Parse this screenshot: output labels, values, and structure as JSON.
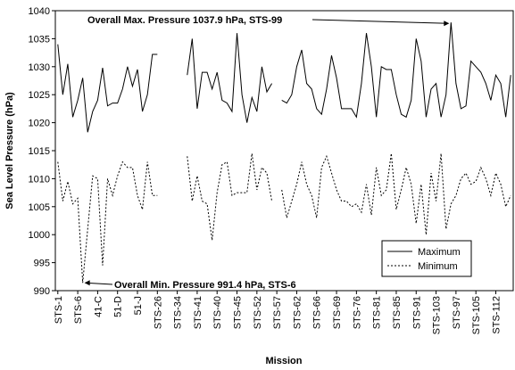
{
  "chart_data": {
    "type": "line",
    "x_label": "Mission",
    "y_label": "Sea Level Pressure (hPa)",
    "annotations": [
      "Overall Max. Pressure 1037.9 hPa, STS-99",
      "Overall Min. Pressure 991.4 hPa, STS-6"
    ],
    "categories": [
      "STS-1",
      null,
      null,
      null,
      "STS-6",
      null,
      null,
      null,
      "41-C",
      null,
      null,
      null,
      "51-D",
      null,
      null,
      null,
      "51-J",
      null,
      null,
      null,
      "STS-26",
      null,
      null,
      null,
      "STS-34",
      null,
      null,
      null,
      "STS-41",
      null,
      null,
      null,
      "STS-40",
      null,
      null,
      null,
      "STS-45",
      null,
      null,
      null,
      "STS-52",
      null,
      null,
      null,
      "STS-57",
      null,
      null,
      null,
      "STS-62",
      null,
      null,
      null,
      "STS-66",
      null,
      null,
      null,
      "STS-69",
      null,
      null,
      null,
      "STS-76",
      null,
      null,
      null,
      "STS-81",
      null,
      null,
      null,
      "STS-85",
      null,
      null,
      null,
      "STS-91",
      null,
      null,
      null,
      "STS-103",
      null,
      null,
      null,
      "STS-97",
      null,
      null,
      null,
      "STS-105",
      null,
      null,
      null,
      "STS-112",
      null,
      null,
      null
    ],
    "series": [
      {
        "name": "Maximum",
        "color": "#000000",
        "dash": "solid",
        "values": [
          1034,
          1025,
          1030.5,
          1021,
          1024,
          1028,
          1018.3,
          1022,
          1024,
          1029.8,
          1023,
          1023.5,
          1023.5,
          1026,
          1030,
          1026.5,
          1029.5,
          1022,
          1025,
          1032.2,
          1032.2,
          null,
          null,
          null,
          null,
          null,
          1028.5,
          1035,
          1022.5,
          1029,
          1029,
          1026,
          1029,
          1024,
          1023.5,
          1022,
          1036,
          1025,
          1020,
          1024.5,
          1022,
          1030,
          1025.5,
          1027,
          null,
          1024,
          1023.5,
          1025,
          1030,
          1033,
          1027,
          1026,
          1022.5,
          1021.5,
          1026,
          1032,
          1028,
          1022.5,
          1022.5,
          1022.5,
          1021,
          1027,
          1036,
          1030,
          1021,
          1030,
          1029.5,
          1029.5,
          1025,
          1021.5,
          1021,
          1024,
          1035,
          1031,
          1021,
          1026,
          1027,
          1021,
          1025,
          1037.9,
          1027,
          1022.5,
          1023,
          1031,
          1030,
          1029,
          1027,
          1024,
          1028.5,
          1027,
          1021,
          1028.5
        ]
      },
      {
        "name": "Minimum",
        "color": "#000000",
        "dash": "dotted",
        "values": [
          1013,
          1006,
          1009.5,
          1005.5,
          1006.5,
          991.4,
          1001,
          1010.5,
          1010,
          994.5,
          1010,
          1007,
          1010.5,
          1013,
          1012,
          1012,
          1007,
          1004.5,
          1013,
          1007,
          1007,
          null,
          null,
          null,
          null,
          null,
          1014,
          1006,
          1010.5,
          1006,
          1005.5,
          999,
          1007.5,
          1012.5,
          1013,
          1007,
          1007.5,
          1007.5,
          1007.5,
          1014.5,
          1008,
          1012,
          1011,
          1006,
          null,
          1008,
          1003,
          1006,
          1009,
          1013,
          1009,
          1007,
          1003,
          1012,
          1014,
          1011,
          1008,
          1006,
          1006,
          1005,
          1005.5,
          1004,
          1009,
          1003.5,
          1012,
          1007,
          1008,
          1014.5,
          1004.5,
          1008,
          1012,
          1009,
          1002,
          1009,
          1000,
          1011,
          1006,
          1014.5,
          1001,
          1005.5,
          1007,
          1010,
          1011,
          1009,
          1009.5,
          1012,
          1010,
          1007,
          1011,
          1009,
          1005,
          1007
        ]
      }
    ],
    "ylim": [
      990,
      1040
    ],
    "yticks": [
      990,
      995,
      1000,
      1005,
      1010,
      1015,
      1020,
      1025,
      1030,
      1035,
      1040
    ],
    "grid": false,
    "legend": "lower right"
  }
}
